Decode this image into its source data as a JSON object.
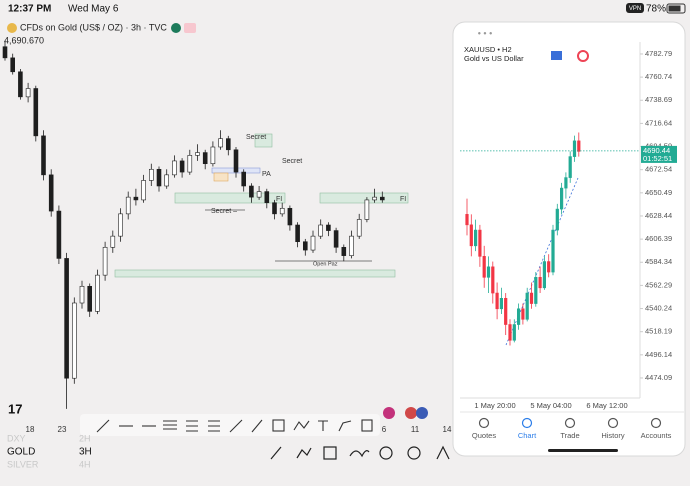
{
  "status_bar": {
    "time": "12:37 PM",
    "date": "Wed May 6",
    "vpn": "VPN",
    "battery": "78%"
  },
  "chart_data": [
    {
      "type": "candlestick",
      "title": "CFDs on Gold (US$ / OZ) · 3h · TVC",
      "subtitle": "4,690.670",
      "ylim": [
        3900,
        5300
      ],
      "up_color": "#1e1e1e",
      "down_color": "#1e1e1e",
      "xtick_labels": [
        "18",
        "23",
        "6",
        "11",
        "14"
      ],
      "annotations": [
        "Secret",
        "PA",
        "Secret",
        "FI",
        "FI",
        "Secret –",
        "Open Paz"
      ],
      "candles": [
        [
          5240,
          5262,
          5190,
          5200
        ],
        [
          5200,
          5215,
          5140,
          5150
        ],
        [
          5150,
          5160,
          5050,
          5060
        ],
        [
          5060,
          5110,
          5040,
          5090
        ],
        [
          5090,
          5100,
          4900,
          4920
        ],
        [
          4920,
          4940,
          4760,
          4780
        ],
        [
          4780,
          4800,
          4630,
          4650
        ],
        [
          4650,
          4670,
          4460,
          4480
        ],
        [
          4480,
          4500,
          3940,
          4050
        ],
        [
          4050,
          4340,
          4030,
          4320
        ],
        [
          4320,
          4400,
          4300,
          4380
        ],
        [
          4380,
          4390,
          4270,
          4290
        ],
        [
          4290,
          4440,
          4280,
          4420
        ],
        [
          4420,
          4540,
          4400,
          4520
        ],
        [
          4520,
          4580,
          4500,
          4560
        ],
        [
          4560,
          4660,
          4540,
          4640
        ],
        [
          4640,
          4720,
          4620,
          4700
        ],
        [
          4700,
          4730,
          4670,
          4690
        ],
        [
          4690,
          4780,
          4680,
          4760
        ],
        [
          4760,
          4820,
          4740,
          4800
        ],
        [
          4800,
          4810,
          4720,
          4740
        ],
        [
          4740,
          4800,
          4730,
          4780
        ],
        [
          4780,
          4850,
          4770,
          4830
        ],
        [
          4830,
          4840,
          4770,
          4790
        ],
        [
          4790,
          4870,
          4780,
          4850
        ],
        [
          4850,
          4890,
          4830,
          4860
        ],
        [
          4860,
          4870,
          4800,
          4820
        ],
        [
          4820,
          4900,
          4810,
          4880
        ],
        [
          4880,
          4940,
          4870,
          4910
        ],
        [
          4910,
          4920,
          4850,
          4870
        ],
        [
          4870,
          4880,
          4770,
          4790
        ],
        [
          4790,
          4800,
          4720,
          4740
        ],
        [
          4740,
          4750,
          4680,
          4700
        ],
        [
          4700,
          4740,
          4690,
          4720
        ],
        [
          4720,
          4730,
          4660,
          4680
        ],
        [
          4680,
          4690,
          4620,
          4640
        ],
        [
          4640,
          4680,
          4630,
          4660
        ],
        [
          4660,
          4670,
          4580,
          4600
        ],
        [
          4600,
          4610,
          4520,
          4540
        ],
        [
          4540,
          4550,
          4490,
          4510
        ],
        [
          4510,
          4580,
          4500,
          4560
        ],
        [
          4560,
          4620,
          4550,
          4600
        ],
        [
          4600,
          4610,
          4560,
          4580
        ],
        [
          4580,
          4590,
          4500,
          4520
        ],
        [
          4520,
          4530,
          4470,
          4490
        ],
        [
          4490,
          4580,
          4480,
          4560
        ],
        [
          4560,
          4640,
          4550,
          4620
        ],
        [
          4620,
          4700,
          4610,
          4690
        ],
        [
          4690,
          4730,
          4680,
          4700
        ],
        [
          4700,
          4720,
          4680,
          4690
        ]
      ]
    },
    {
      "type": "candlestick",
      "title": "XAUUSD • H2",
      "subtitle": "Gold vs US Dollar",
      "ylim": [
        4453.1,
        4792.3
      ],
      "up_color": "#22ab94",
      "down_color": "#f23645",
      "yticks": [
        4782.79,
        4760.74,
        4738.69,
        4716.64,
        4694.59,
        4672.54,
        4650.49,
        4628.44,
        4606.39,
        4584.34,
        4562.29,
        4540.24,
        4518.19,
        4496.14,
        4474.09
      ],
      "last_price": 4690.44,
      "timer": "01:52:51",
      "xtick_labels": [
        "1 May 20:00",
        "5 May 04:00",
        "6 May 12:00"
      ],
      "candles": [
        [
          4630,
          4645,
          4610,
          4620
        ],
        [
          4620,
          4630,
          4590,
          4600
        ],
        [
          4600,
          4625,
          4595,
          4615
        ],
        [
          4615,
          4620,
          4580,
          4590
        ],
        [
          4590,
          4600,
          4560,
          4570
        ],
        [
          4570,
          4590,
          4555,
          4580
        ],
        [
          4580,
          4585,
          4545,
          4555
        ],
        [
          4555,
          4565,
          4530,
          4540
        ],
        [
          4540,
          4560,
          4535,
          4550
        ],
        [
          4550,
          4555,
          4515,
          4525
        ],
        [
          4525,
          4530,
          4505,
          4510
        ],
        [
          4510,
          4530,
          4508,
          4525
        ],
        [
          4525,
          4545,
          4520,
          4540
        ],
        [
          4540,
          4545,
          4525,
          4530
        ],
        [
          4530,
          4560,
          4528,
          4555
        ],
        [
          4555,
          4565,
          4540,
          4545
        ],
        [
          4545,
          4575,
          4542,
          4570
        ],
        [
          4570,
          4580,
          4555,
          4560
        ],
        [
          4560,
          4590,
          4558,
          4585
        ],
        [
          4585,
          4592,
          4570,
          4575
        ],
        [
          4575,
          4620,
          4572,
          4615
        ],
        [
          4615,
          4640,
          4610,
          4635
        ],
        [
          4635,
          4660,
          4630,
          4655
        ],
        [
          4655,
          4670,
          4645,
          4665
        ],
        [
          4665,
          4690,
          4660,
          4685
        ],
        [
          4685,
          4705,
          4680,
          4700
        ],
        [
          4700,
          4708,
          4685,
          4690
        ]
      ]
    }
  ],
  "watchlist": [
    {
      "symbol": "DXY",
      "interval": "2H"
    },
    {
      "symbol": "GOLD",
      "interval": "3H"
    },
    {
      "symbol": "SILVER",
      "interval": "4H"
    }
  ],
  "phone_tabs": [
    "Quotes",
    "Chart",
    "Trade",
    "History",
    "Accounts"
  ]
}
